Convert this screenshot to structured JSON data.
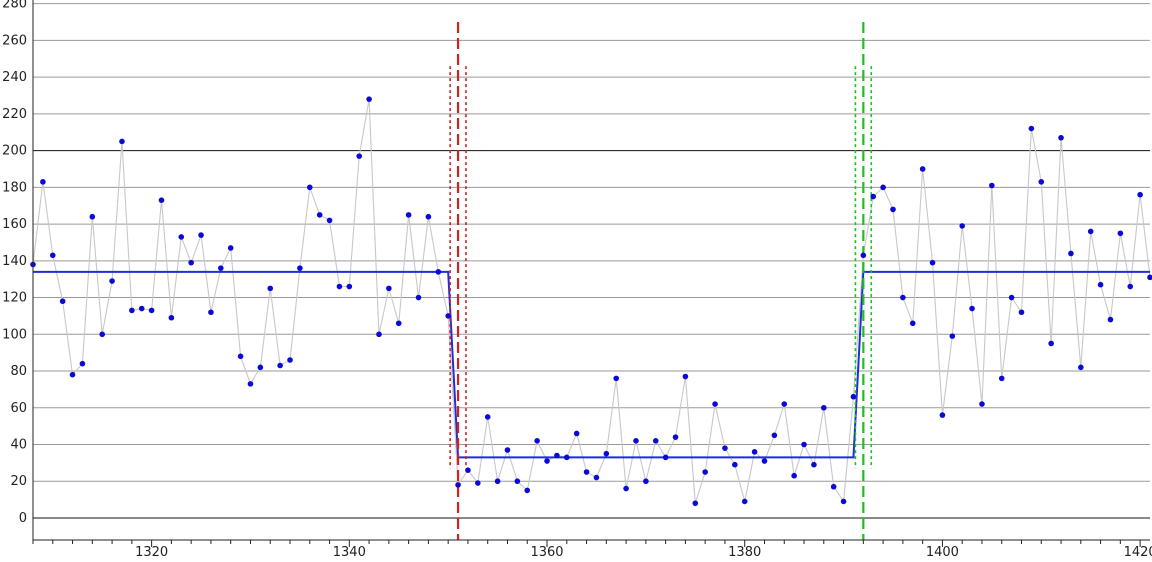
{
  "chart_data": {
    "type": "line",
    "title": "",
    "xlabel": "",
    "ylabel": "",
    "xlim": [
      1308,
      1421
    ],
    "ylim": [
      -12,
      282
    ],
    "x_ticks": [
      1320,
      1340,
      1360,
      1380,
      1400,
      1420
    ],
    "y_ticks": [
      0,
      20,
      40,
      60,
      80,
      100,
      120,
      140,
      160,
      180,
      200,
      220,
      240,
      260,
      280
    ],
    "bold_gridlines_y": [
      0,
      200
    ],
    "grid": true,
    "legend": "none",
    "colors": {
      "points": "#0a0ad8",
      "connector": "#c8c8c8",
      "mean_line": "#1f2fd6",
      "change_down": "#d62020",
      "change_up": "#1fbf1f"
    },
    "series": [
      {
        "type": "scatter-connected",
        "x": [
          1308,
          1309,
          1310,
          1311,
          1312,
          1313,
          1314,
          1315,
          1316,
          1317,
          1318,
          1319,
          1320,
          1321,
          1322,
          1323,
          1324,
          1325,
          1326,
          1327,
          1328,
          1329,
          1330,
          1331,
          1332,
          1333,
          1334,
          1335,
          1336,
          1337,
          1338,
          1339,
          1340,
          1341,
          1342,
          1343,
          1344,
          1345,
          1346,
          1347,
          1348,
          1349,
          1350,
          1351,
          1352,
          1353,
          1354,
          1355,
          1356,
          1357,
          1358,
          1359,
          1360,
          1361,
          1362,
          1363,
          1364,
          1365,
          1366,
          1367,
          1368,
          1369,
          1370,
          1371,
          1372,
          1373,
          1374,
          1375,
          1376,
          1377,
          1378,
          1379,
          1380,
          1381,
          1382,
          1383,
          1384,
          1385,
          1386,
          1387,
          1388,
          1389,
          1390,
          1391,
          1392,
          1393,
          1394,
          1395,
          1396,
          1397,
          1398,
          1399,
          1400,
          1401,
          1402,
          1403,
          1404,
          1405,
          1406,
          1407,
          1408,
          1409,
          1410,
          1411,
          1412,
          1413,
          1414,
          1415,
          1416,
          1417,
          1418,
          1419,
          1420,
          1421
        ],
        "y": [
          138,
          183,
          143,
          118,
          78,
          84,
          164,
          100,
          129,
          205,
          113,
          114,
          113,
          173,
          109,
          153,
          139,
          154,
          112,
          136,
          147,
          88,
          73,
          82,
          125,
          83,
          86,
          136,
          180,
          165,
          162,
          126,
          126,
          197,
          228,
          100,
          125,
          106,
          165,
          120,
          164,
          134,
          110,
          18,
          26,
          19,
          55,
          20,
          37,
          20,
          15,
          42,
          31,
          34,
          33,
          46,
          25,
          22,
          35,
          76,
          16,
          42,
          20,
          42,
          33,
          44,
          77,
          8,
          25,
          62,
          38,
          29,
          9,
          36,
          31,
          45,
          62,
          23,
          40,
          29,
          60,
          17,
          9,
          66,
          143,
          175,
          180,
          168,
          120,
          106,
          190,
          139,
          56,
          99,
          159,
          114,
          62,
          181,
          76,
          120,
          112,
          212,
          183,
          95,
          207,
          144,
          82,
          156,
          127,
          108,
          155,
          126,
          176,
          131
        ]
      },
      {
        "type": "step-mean",
        "segments": [
          {
            "x_start": 1308,
            "x_end": 1350,
            "value": 134
          },
          {
            "x_start": 1351,
            "x_end": 1391,
            "value": 33
          },
          {
            "x_start": 1392,
            "x_end": 1421,
            "value": 134
          }
        ]
      }
    ],
    "change_points": [
      {
        "x": 1351,
        "direction": "down",
        "band": [
          1350.2,
          1351.8
        ]
      },
      {
        "x": 1392,
        "direction": "up",
        "band": [
          1391.2,
          1392.8
        ]
      }
    ]
  }
}
